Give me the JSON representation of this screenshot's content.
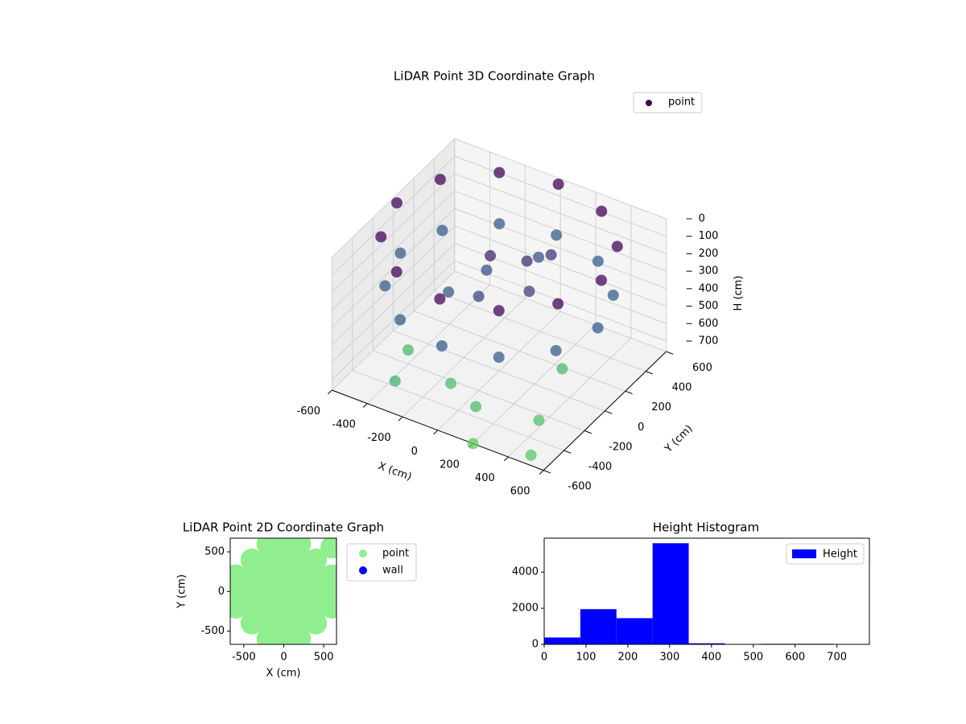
{
  "chart_data": [
    {
      "type": "scatter3d",
      "title": "LiDAR Point 3D Coordinate Graph",
      "xlabel": "X (cm)",
      "ylabel": "Y (cm)",
      "zlabel": "H (cm)",
      "xlim": [
        -600,
        600
      ],
      "ylim": [
        -600,
        600
      ],
      "zlim": [
        760,
        0
      ],
      "xticks": [
        -600,
        -400,
        -200,
        0,
        200,
        400,
        600
      ],
      "yticks": [
        -600,
        -400,
        -200,
        0,
        200,
        400,
        600
      ],
      "zticks": [
        0,
        100,
        200,
        300,
        400,
        500,
        600,
        700
      ],
      "legend": "upper right",
      "colormap": [
        "#440154",
        "#3b528b",
        "#21918c",
        "#5ec962"
      ],
      "series": [
        {
          "name": "point",
          "color": "#440154",
          "x": [
            580,
            502,
            290,
            0,
            -290,
            -502,
            -580,
            -502,
            -290,
            0,
            290,
            502,
            560,
            485,
            280,
            0,
            -280,
            -485,
            -560,
            -485,
            -280,
            0,
            280,
            485,
            100,
            200,
            -100,
            -200,
            0,
            150,
            -50,
            50,
            -300,
            100,
            400,
            -400,
            300,
            500,
            -100,
            200
          ],
          "y": [
            0,
            290,
            502,
            580,
            502,
            290,
            0,
            -290,
            -502,
            -580,
            -502,
            -290,
            0,
            280,
            485,
            560,
            485,
            280,
            0,
            -280,
            -485,
            -560,
            -485,
            -280,
            100,
            -50,
            50,
            -150,
            -200,
            250,
            0,
            300,
            -500,
            -400,
            -300,
            -200,
            100,
            -550,
            -300,
            -600
          ],
          "values": [
            20,
            20,
            20,
            20,
            20,
            20,
            20,
            20,
            20,
            20,
            20,
            20,
            300,
            300,
            300,
            300,
            300,
            300,
            300,
            300,
            300,
            300,
            300,
            300,
            150,
            200,
            250,
            300,
            220,
            180,
            120,
            260,
            650,
            700,
            720,
            680,
            690,
            740,
            700,
            760
          ]
        }
      ]
    },
    {
      "type": "scatter",
      "title": "LiDAR Point 2D Coordinate Graph",
      "xlabel": "X (cm)",
      "ylabel": "Y (cm)",
      "xlim": [
        -670,
        660
      ],
      "ylim": [
        -667,
        673
      ],
      "xticks": [
        -500,
        0,
        500
      ],
      "yticks": [
        -500,
        0,
        500
      ],
      "legend": "outside upper right",
      "series": [
        {
          "name": "point",
          "color": "#90ee90",
          "x": [
            -200,
            0,
            200,
            -400,
            -200,
            0,
            200,
            400,
            -600,
            -400,
            -200,
            0,
            200,
            400,
            600,
            -600,
            -400,
            -200,
            0,
            200,
            400,
            600,
            -600,
            -400,
            -200,
            0,
            200,
            400,
            600,
            -400,
            -200,
            0,
            200,
            400,
            -200,
            0,
            200,
            600
          ],
          "values": [
            600,
            600,
            600,
            400,
            400,
            400,
            400,
            400,
            200,
            200,
            200,
            200,
            200,
            200,
            200,
            0,
            0,
            0,
            0,
            0,
            0,
            0,
            -200,
            -200,
            -200,
            -200,
            -200,
            -200,
            -200,
            -400,
            -400,
            -400,
            -400,
            -400,
            -600,
            -600,
            -600,
            560
          ]
        },
        {
          "name": "wall",
          "color": "#0000ff",
          "x": [],
          "values": []
        }
      ]
    },
    {
      "type": "histogram",
      "title": "Height Histogram",
      "legend": "upper right",
      "series": [
        {
          "name": "Height",
          "color": "#0000ff"
        }
      ],
      "bins": [
        0,
        86.4,
        172.8,
        259.2,
        345.6,
        432,
        518.4,
        604.8,
        691.2,
        777.6
      ],
      "values": [
        380,
        1950,
        1450,
        5600,
        60,
        0,
        30,
        30,
        0
      ],
      "xlim": [
        0,
        777.6
      ],
      "ylim": [
        0,
        5880
      ],
      "xticks": [
        0,
        100,
        200,
        300,
        400,
        500,
        600,
        700
      ],
      "yticks": [
        0,
        2000,
        4000
      ]
    }
  ]
}
